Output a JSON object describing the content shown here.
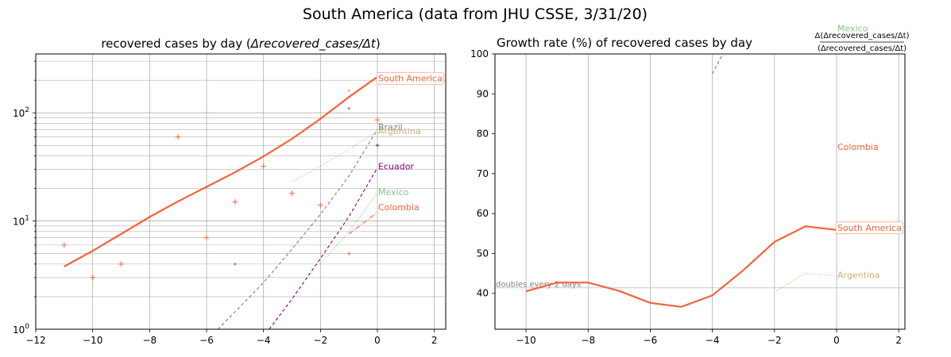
{
  "figure": {
    "suptitle": "South America (data from JHU CSSE, 3/31/20)"
  },
  "chart_data": [
    {
      "type": "line",
      "title": "recovered cases by day (Δrecovered_cases/Δt)",
      "title_parts": {
        "main": "recovered cases by day (",
        "math": "Δrecovered_cases/Δt",
        "close": ")"
      },
      "xlabel": "",
      "ylabel": "",
      "yscale": "log",
      "xlim": [
        -12,
        2.4
      ],
      "ylim": [
        1,
        350
      ],
      "grid": true,
      "x_ticks": [
        -12,
        -10,
        -8,
        -6,
        -4,
        -2,
        0,
        2
      ],
      "x_tick_labels": [
        "−12",
        "−10",
        "−8",
        "−6",
        "−4",
        "−2",
        "0",
        "2"
      ],
      "y_ticks": [
        {
          "value": 1,
          "base": "10",
          "exp": "0"
        },
        {
          "value": 10,
          "base": "10",
          "exp": "1"
        },
        {
          "value": 100,
          "base": "10",
          "exp": "2"
        }
      ],
      "series": [
        {
          "name": "South America",
          "color": "#f4623a",
          "style": "solid",
          "line": {
            "x": [
              -11,
              -10,
              -9,
              -8,
              -7,
              -6,
              -5,
              -4,
              -3,
              -2,
              -1,
              0
            ],
            "y": [
              3.8,
              5.3,
              7.6,
              10.9,
              15.2,
              20.7,
              28.2,
              39.5,
              57.5,
              88,
              140,
              215
            ]
          },
          "markers": {
            "x": [
              -11,
              -10,
              -9,
              -7,
              -6,
              -5,
              -4,
              -3,
              -2,
              0
            ],
            "y": [
              6,
              3,
              4,
              60,
              7,
              15,
              32,
              18,
              14,
              86
            ]
          }
        },
        {
          "name": "Brazil",
          "color": "#808080",
          "style": "dashed",
          "line": {
            "x": [
              -5.6,
              -4,
              -3,
              -2,
              -1,
              0
            ],
            "y": [
              1,
              2.7,
              5.5,
              11.5,
              26,
              70
            ]
          },
          "markers": {
            "x": [
              -5,
              -1
            ],
            "y": [
              4,
              110
            ]
          }
        },
        {
          "name": "Argentina",
          "color": "#c9b078",
          "style": "dotted",
          "line": {
            "x": [
              -3,
              -2,
              -1,
              0
            ],
            "y": [
              23,
              32,
              46,
              67
            ]
          },
          "markers": {
            "x": [
              -1
            ],
            "y": [
              160
            ]
          }
        },
        {
          "name": "Ecuador",
          "color": "#800080",
          "style": "dashed",
          "line": {
            "x": [
              -3.8,
              -3,
              -2,
              -1,
              0
            ],
            "y": [
              1,
              1.9,
              4.5,
              11,
              31
            ]
          },
          "markers": {
            "x": [
              0
            ],
            "y": [
              50
            ]
          }
        },
        {
          "name": "Mexico",
          "color": "#8cbf88",
          "style": "dotted",
          "line": {
            "x": [
              -2,
              -1,
              0
            ],
            "y": [
              4,
              8,
              18
            ]
          },
          "markers": {
            "x": [],
            "y": []
          }
        },
        {
          "name": "Colombia",
          "color": "#f4623a",
          "style": "dashdot",
          "line": {
            "x": [
              -1,
              0
            ],
            "y": [
              7.6,
              12
            ]
          },
          "markers": {
            "x": [
              -1
            ],
            "y": [
              5
            ]
          }
        }
      ],
      "annotations": [
        {
          "text": "South America",
          "x": 0,
          "y": 210,
          "color": "#f4623a",
          "boxed": true
        },
        {
          "text": "Brazil",
          "x": 0,
          "y": 74,
          "color": "#808080",
          "boxed": false
        },
        {
          "text": "Argentina",
          "x": 0,
          "y": 68,
          "color": "#c9b078",
          "boxed": false
        },
        {
          "text": "Ecuador",
          "x": 0,
          "y": 32,
          "color": "#800080",
          "boxed": false
        },
        {
          "text": "Mexico",
          "x": 0,
          "y": 18.5,
          "color": "#8cbf88",
          "boxed": false
        },
        {
          "text": "Colombia",
          "x": 0,
          "y": 13.5,
          "color": "#f4623a",
          "boxed": false
        }
      ]
    },
    {
      "type": "line",
      "title": "Growth rate (%) of recovered cases by day",
      "title_frac": {
        "num": "Δ(Δrecovered_cases/Δt)",
        "den": "(Δrecovered_cases/Δt)"
      },
      "xlabel": "",
      "ylabel": "",
      "yscale": "linear",
      "xlim": [
        -11,
        2.2
      ],
      "ylim": [
        31,
        100
      ],
      "grid": "x",
      "x_ticks": [
        -10,
        -8,
        -6,
        -4,
        -2,
        0,
        2
      ],
      "x_tick_labels": [
        "−10",
        "−8",
        "−6",
        "−4",
        "−2",
        "0",
        "2"
      ],
      "y_ticks": [
        40,
        50,
        60,
        70,
        80,
        90,
        100
      ],
      "y_tick_labels": [
        "40",
        "50",
        "60",
        "70",
        "80",
        "90",
        "100"
      ],
      "reference_line": {
        "y": 41.4,
        "label": "doubles every 2 days",
        "color": "#c8c8c8"
      },
      "series": [
        {
          "name": "South America",
          "color": "#f4623a",
          "style": "solid",
          "x": [
            -10,
            -9,
            -8,
            -7,
            -6,
            -5,
            -4,
            -3,
            -2,
            -1,
            0
          ],
          "y": [
            40.5,
            42.7,
            42.7,
            40.6,
            37.6,
            36.6,
            39.5,
            45.8,
            52.9,
            56.8,
            55.9
          ]
        },
        {
          "name": "Argentina",
          "color": "#c9b078",
          "style": "dotted",
          "x": [
            -2,
            -1,
            0
          ],
          "y": [
            40.3,
            45.0,
            44.4
          ]
        },
        {
          "name": "Brazil",
          "color": "#808080",
          "style": "dashed",
          "x": [
            -4,
            -3.6
          ],
          "y": [
            95,
            101
          ]
        }
      ],
      "annotations": [
        {
          "text": "Mexico",
          "x": 0,
          "y": 106.5,
          "color": "#8cbf88",
          "boxed": false
        },
        {
          "text": "Colombia",
          "x": 0,
          "y": 76.7,
          "color": "#f4623a",
          "boxed": false
        },
        {
          "text": "South America",
          "x": 0,
          "y": 56.5,
          "color": "#f4623a",
          "boxed": true
        },
        {
          "text": "Argentina",
          "x": 0,
          "y": 44.6,
          "color": "#c9b078",
          "boxed": false
        }
      ]
    }
  ]
}
